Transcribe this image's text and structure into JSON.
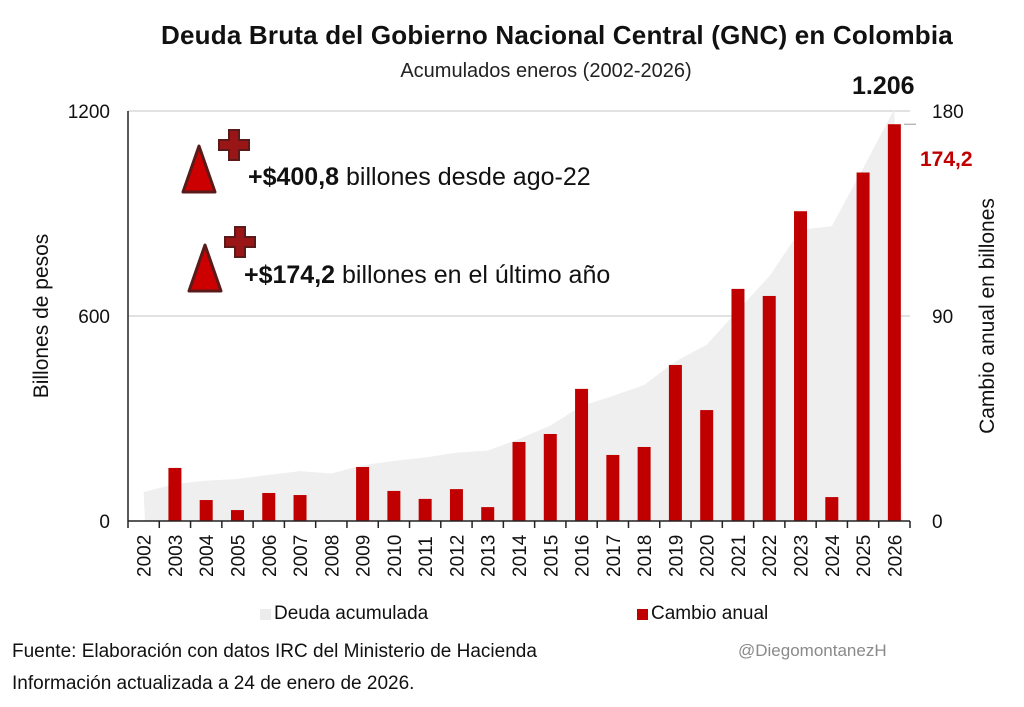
{
  "chart_data": {
    "type": "bar+area",
    "title": "Deuda Bruta del Gobierno Nacional Central (GNC) en Colombia",
    "subtitle": "Acumulados eneros (2002-2026)",
    "categories": [
      "2002",
      "2003",
      "2004",
      "2005",
      "2006",
      "2007",
      "2008",
      "2009",
      "2010",
      "2011",
      "2012",
      "2013",
      "2014",
      "2015",
      "2016",
      "2017",
      "2018",
      "2019",
      "2020",
      "2021",
      "2022",
      "2023",
      "2024",
      "2025",
      "2026"
    ],
    "series": [
      {
        "name": "Deuda acumulada",
        "type": "area",
        "axis": "left",
        "color": "#efefef",
        "values": [
          85,
          108,
          118,
          123,
          135,
          146,
          139,
          163,
          176,
          186,
          200,
          206,
          240,
          279,
          337,
          366,
          398,
          467,
          516,
          617,
          716,
          852,
          863,
          1032,
          1206
        ]
      },
      {
        "name": "Cambio anual",
        "type": "bar",
        "axis": "right",
        "color": "#c00000",
        "values": [
          0,
          23.3,
          9.2,
          4.8,
          12.3,
          11.4,
          0,
          23.7,
          13.2,
          9.7,
          14.0,
          6.1,
          34.7,
          38.2,
          58.0,
          29.0,
          32.5,
          68.5,
          48.7,
          101.9,
          98.8,
          136.0,
          10.5,
          153.0,
          174.2
        ]
      }
    ],
    "ylabel": "Billones de pesos",
    "ylim": [
      0,
      1200
    ],
    "yticks": [
      "0",
      "600",
      "1200"
    ],
    "y2label": "Cambio anual en billones",
    "y2lim": [
      0,
      180
    ],
    "y2ticks": [
      "0",
      "90",
      "180"
    ],
    "grid": true,
    "legend": "bottom",
    "annotations": {
      "total_label": "1.206",
      "last_change_label": "174,2",
      "note1_bold": "+$400,8",
      "note1_rest": " billones desde ago-22",
      "note2_bold": "+$174,2",
      "note2_rest": " billones en el último año"
    }
  },
  "footer": {
    "source": "Fuente: Elaboración con datos IRC del Ministerio de Hacienda",
    "updated": "Información actualizada a 24 de enero de 2026.",
    "handle": "@DiegomontanezH"
  },
  "icons": {
    "triangle_icon": "increase-triangle",
    "plus_icon": "plus-cross"
  }
}
